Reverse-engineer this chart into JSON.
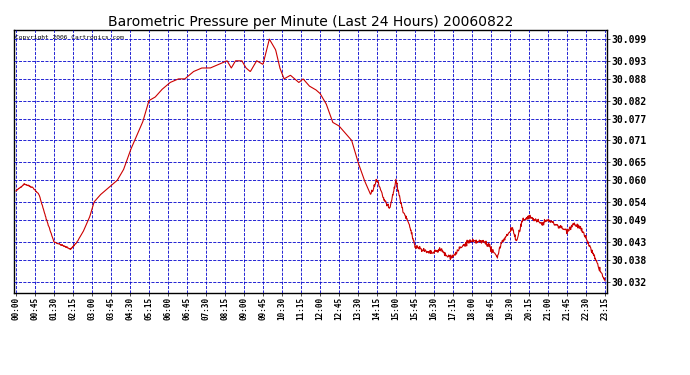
{
  "title": "Barometric Pressure per Minute (Last 24 Hours) 20060822",
  "copyright_text": "Copyright 2006 Cartronics.com",
  "line_color": "#cc0000",
  "grid_color": "#0000cc",
  "title_color": "#000000",
  "ytick_labels": [
    30.099,
    30.093,
    30.088,
    30.082,
    30.077,
    30.071,
    30.065,
    30.06,
    30.054,
    30.049,
    30.043,
    30.038,
    30.032
  ],
  "ymin": 30.029,
  "ymax": 30.1015,
  "xtick_labels": [
    "00:00",
    "00:45",
    "01:30",
    "02:15",
    "03:00",
    "03:45",
    "04:30",
    "05:15",
    "06:00",
    "06:45",
    "07:30",
    "08:15",
    "09:00",
    "09:45",
    "10:30",
    "11:15",
    "12:00",
    "12:45",
    "13:30",
    "14:15",
    "15:00",
    "15:45",
    "16:30",
    "17:15",
    "18:00",
    "18:45",
    "19:30",
    "20:15",
    "21:00",
    "21:45",
    "22:30",
    "23:15"
  ],
  "xtick_positions": [
    0,
    45,
    90,
    135,
    180,
    225,
    270,
    315,
    360,
    405,
    450,
    495,
    540,
    585,
    630,
    675,
    720,
    765,
    810,
    855,
    900,
    945,
    990,
    1035,
    1080,
    1125,
    1170,
    1215,
    1260,
    1305,
    1350,
    1395
  ],
  "key_x": [
    0,
    20,
    40,
    55,
    70,
    90,
    110,
    130,
    145,
    160,
    175,
    185,
    200,
    220,
    240,
    255,
    270,
    285,
    300,
    315,
    330,
    345,
    365,
    385,
    400,
    420,
    440,
    460,
    480,
    500,
    510,
    520,
    535,
    545,
    555,
    570,
    585,
    600,
    615,
    625,
    635,
    650,
    660,
    670,
    680,
    695,
    710,
    720,
    735,
    750,
    765,
    780,
    795,
    810,
    825,
    840,
    855,
    870,
    885,
    900,
    915,
    930,
    945,
    960,
    975,
    990,
    1005,
    1020,
    1035,
    1050,
    1060,
    1070,
    1080,
    1095,
    1110,
    1120,
    1130,
    1140,
    1150,
    1165,
    1175,
    1185,
    1200,
    1215,
    1230,
    1245,
    1260,
    1275,
    1290,
    1305,
    1320,
    1335,
    1350,
    1365,
    1380,
    1395
  ],
  "key_y": [
    30.057,
    30.059,
    30.058,
    30.056,
    30.05,
    30.043,
    30.042,
    30.041,
    30.043,
    30.046,
    30.05,
    30.054,
    30.056,
    30.058,
    30.06,
    30.063,
    30.068,
    30.072,
    30.076,
    30.082,
    30.083,
    30.085,
    30.087,
    30.088,
    30.088,
    30.09,
    30.091,
    30.091,
    30.092,
    30.093,
    30.091,
    30.093,
    30.093,
    30.091,
    30.09,
    30.093,
    30.092,
    30.099,
    30.096,
    30.091,
    30.088,
    30.089,
    30.088,
    30.087,
    30.088,
    30.086,
    30.085,
    30.084,
    30.081,
    30.076,
    30.075,
    30.073,
    30.071,
    30.065,
    30.06,
    30.056,
    30.06,
    30.055,
    30.052,
    30.06,
    30.052,
    30.048,
    30.042,
    30.041,
    30.04,
    30.04,
    30.041,
    30.039,
    30.039,
    30.041,
    30.042,
    30.043,
    30.043,
    30.043,
    30.043,
    30.042,
    30.04,
    30.039,
    30.043,
    30.045,
    30.047,
    30.043,
    30.049,
    30.05,
    30.049,
    30.048,
    30.049,
    30.048,
    30.047,
    30.046,
    30.048,
    30.047,
    30.044,
    30.04,
    30.036,
    30.032
  ]
}
